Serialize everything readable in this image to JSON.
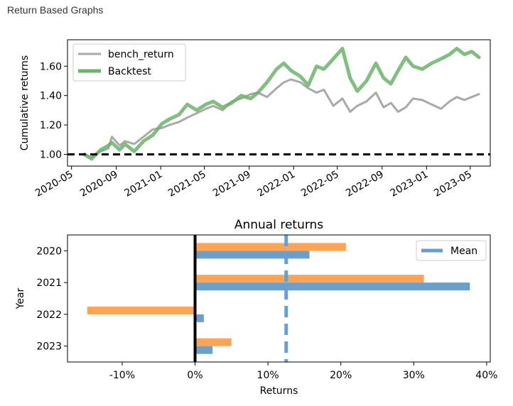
{
  "page": {
    "header": "Return Based Graphs"
  },
  "chart_data": [
    {
      "type": "line",
      "ylabel": "Cumulative returns",
      "xlabel": "",
      "x_tick_labels": [
        "2020-05",
        "2020-09",
        "2021-01",
        "2021-05",
        "2021-09",
        "2022-01",
        "2022-05",
        "2022-09",
        "2023-01",
        "2023-05"
      ],
      "xlim": [
        "2020-04-20",
        "2023-06-25"
      ],
      "y_tick_labels": [
        "1.00",
        "1.20",
        "1.40",
        "1.60"
      ],
      "ylim": [
        0.92,
        1.78
      ],
      "grid": false,
      "legend": "top-left",
      "reference_line": {
        "y": 1.0,
        "style": "dashed",
        "color": "#000000"
      },
      "series": [
        {
          "name": "bench_return",
          "color": "#a9a9a9",
          "x": [
            "2020-06-05",
            "2020-06-25",
            "2020-07-20",
            "2020-08-10",
            "2020-08-20",
            "2020-09-10",
            "2020-09-25",
            "2020-10-20",
            "2020-11-15",
            "2020-12-10",
            "2021-01-05",
            "2021-01-25",
            "2021-02-20",
            "2021-03-15",
            "2021-04-10",
            "2021-05-05",
            "2021-05-25",
            "2021-06-20",
            "2021-07-15",
            "2021-08-10",
            "2021-09-05",
            "2021-09-25",
            "2021-10-20",
            "2021-11-15",
            "2021-12-05",
            "2021-12-25",
            "2022-01-20",
            "2022-02-10",
            "2022-03-05",
            "2022-03-25",
            "2022-04-20",
            "2022-05-15",
            "2022-06-05",
            "2022-06-25",
            "2022-07-20",
            "2022-08-15",
            "2022-09-05",
            "2022-09-25",
            "2022-10-15",
            "2022-11-05",
            "2022-11-25",
            "2022-12-20",
            "2023-01-15",
            "2023-02-10",
            "2023-03-05",
            "2023-03-25",
            "2023-04-15",
            "2023-05-05",
            "2023-05-25"
          ],
          "y": [
            1.0,
            0.98,
            1.02,
            1.04,
            1.12,
            1.06,
            1.09,
            1.07,
            1.12,
            1.17,
            1.18,
            1.2,
            1.22,
            1.25,
            1.28,
            1.31,
            1.33,
            1.3,
            1.36,
            1.38,
            1.41,
            1.42,
            1.39,
            1.45,
            1.49,
            1.51,
            1.49,
            1.45,
            1.42,
            1.44,
            1.33,
            1.38,
            1.29,
            1.33,
            1.36,
            1.42,
            1.32,
            1.35,
            1.29,
            1.32,
            1.38,
            1.37,
            1.34,
            1.31,
            1.36,
            1.39,
            1.37,
            1.39,
            1.41
          ]
        },
        {
          "name": "Backtest",
          "color": "#6bb36b",
          "x": [
            "2020-06-05",
            "2020-06-25",
            "2020-07-20",
            "2020-08-10",
            "2020-08-20",
            "2020-09-10",
            "2020-09-25",
            "2020-10-20",
            "2020-11-15",
            "2020-12-10",
            "2021-01-05",
            "2021-01-25",
            "2021-02-20",
            "2021-03-15",
            "2021-04-10",
            "2021-05-05",
            "2021-05-25",
            "2021-06-20",
            "2021-07-15",
            "2021-08-10",
            "2021-09-05",
            "2021-09-25",
            "2021-10-20",
            "2021-11-15",
            "2021-12-05",
            "2021-12-25",
            "2022-01-20",
            "2022-02-10",
            "2022-03-05",
            "2022-03-25",
            "2022-04-20",
            "2022-05-15",
            "2022-06-05",
            "2022-06-25",
            "2022-07-20",
            "2022-08-15",
            "2022-09-05",
            "2022-09-25",
            "2022-10-15",
            "2022-11-05",
            "2022-11-25",
            "2022-12-20",
            "2023-01-15",
            "2023-02-10",
            "2023-03-05",
            "2023-03-25",
            "2023-04-15",
            "2023-05-05",
            "2023-05-25"
          ],
          "y": [
            1.0,
            0.97,
            1.03,
            1.06,
            1.08,
            1.03,
            1.07,
            1.02,
            1.09,
            1.13,
            1.21,
            1.24,
            1.27,
            1.34,
            1.3,
            1.34,
            1.36,
            1.32,
            1.35,
            1.4,
            1.38,
            1.42,
            1.49,
            1.58,
            1.62,
            1.57,
            1.53,
            1.47,
            1.6,
            1.58,
            1.65,
            1.72,
            1.52,
            1.43,
            1.5,
            1.62,
            1.52,
            1.48,
            1.57,
            1.66,
            1.6,
            1.58,
            1.62,
            1.65,
            1.68,
            1.72,
            1.68,
            1.7,
            1.66
          ]
        }
      ]
    },
    {
      "type": "bar",
      "orientation": "horizontal",
      "title": "Annual returns",
      "xlabel": "Returns",
      "ylabel": "Year",
      "categories": [
        "2020",
        "2021",
        "2022",
        "2023"
      ],
      "x_tick_labels": [
        "-10%",
        "0%",
        "10%",
        "20%",
        "30%",
        "40%"
      ],
      "xlim": [
        -17.5,
        40.5
      ],
      "grid": false,
      "legend": "top-right",
      "series": [
        {
          "color": "#ffa354",
          "values": [
            20.7,
            31.4,
            -14.8,
            5.0
          ]
        },
        {
          "color": "#6a9ecb",
          "values": [
            15.7,
            37.7,
            1.2,
            2.4
          ]
        }
      ],
      "zero_line": {
        "x": 0,
        "color": "#000000"
      },
      "mean_line": {
        "name": "Mean",
        "x": 12.5,
        "color": "#6a9ecb",
        "style": "dashed"
      }
    }
  ]
}
